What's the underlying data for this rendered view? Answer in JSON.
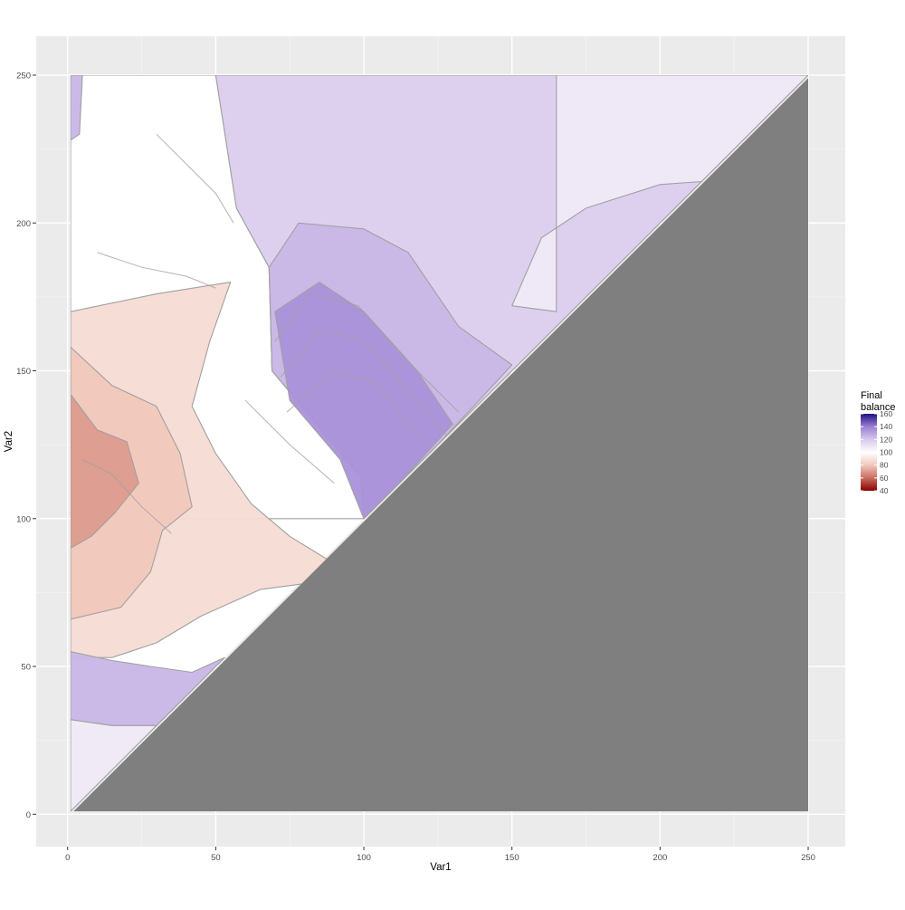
{
  "chart_data": {
    "type": "heatmap",
    "title": "",
    "xlabel": "Var1",
    "ylabel": "Var2",
    "xlim": [
      1,
      250
    ],
    "ylim": [
      1,
      250
    ],
    "x_ticks": [
      0,
      50,
      100,
      150,
      200,
      250
    ],
    "y_ticks": [
      0,
      50,
      100,
      150,
      200,
      250
    ],
    "grid": true,
    "legend": {
      "title_lines": [
        "Final",
        "balance"
      ],
      "placement": "right",
      "ticks": [
        160,
        140,
        120,
        100,
        80,
        60,
        40
      ],
      "range": [
        40,
        160
      ],
      "colors_low_to_high": [
        "#8b0000",
        "#c86e5f",
        "#f0c8bc",
        "#ffffff",
        "#d7c8ec",
        "#9b7fd4",
        "#1f1380"
      ]
    },
    "colors": {
      "panel_background": "#ebebeb",
      "grid_major": "#ffffff",
      "grid_minor": "#f3f3f3",
      "na_region": "#7f7f7f",
      "contour": "#a0a0a0"
    },
    "regions": [
      {
        "label": "white plateau (~100)",
        "value": 100,
        "polygon": [
          [
            1,
            250
          ],
          [
            50,
            250
          ],
          [
            57,
            205
          ],
          [
            68,
            185
          ],
          [
            69,
            150
          ],
          [
            99,
            114
          ],
          [
            100,
            100
          ],
          [
            1,
            100
          ]
        ]
      },
      {
        "label": "light red (~85-90)",
        "value": 87,
        "polygon": [
          [
            1,
            170
          ],
          [
            30,
            176
          ],
          [
            55,
            180
          ],
          [
            48,
            160
          ],
          [
            42,
            138
          ],
          [
            50,
            122
          ],
          [
            62,
            105
          ],
          [
            75,
            94
          ],
          [
            88,
            86
          ],
          [
            80,
            78
          ],
          [
            65,
            76
          ],
          [
            45,
            67
          ],
          [
            30,
            58
          ],
          [
            15,
            53
          ],
          [
            1,
            53
          ]
        ]
      },
      {
        "label": "medium red (~80)",
        "value": 80,
        "polygon": [
          [
            1,
            158
          ],
          [
            15,
            145
          ],
          [
            30,
            138
          ],
          [
            38,
            122
          ],
          [
            42,
            104
          ],
          [
            32,
            96
          ],
          [
            28,
            82
          ],
          [
            18,
            70
          ],
          [
            1,
            66
          ]
        ]
      },
      {
        "label": "deep red (~70)",
        "value": 70,
        "polygon": [
          [
            1,
            142
          ],
          [
            10,
            130
          ],
          [
            20,
            126
          ],
          [
            24,
            112
          ],
          [
            16,
            102
          ],
          [
            8,
            94
          ],
          [
            1,
            90
          ]
        ]
      },
      {
        "label": "lavender (~115-120)",
        "value": 118,
        "polygon": [
          [
            50,
            250
          ],
          [
            250,
            250
          ],
          [
            142,
            142
          ],
          [
            100,
            100
          ],
          [
            99,
            114
          ],
          [
            69,
            150
          ],
          [
            68,
            185
          ],
          [
            57,
            205
          ]
        ]
      },
      {
        "label": "purple band (~125)",
        "value": 125,
        "polygon": [
          [
            68,
            185
          ],
          [
            78,
            200
          ],
          [
            100,
            198
          ],
          [
            115,
            190
          ],
          [
            132,
            165
          ],
          [
            150,
            152
          ],
          [
            125,
            125
          ],
          [
            100,
            100
          ],
          [
            99,
            114
          ],
          [
            69,
            150
          ]
        ]
      },
      {
        "label": "deep purple (~135)",
        "value": 135,
        "polygon": [
          [
            70,
            170
          ],
          [
            85,
            180
          ],
          [
            100,
            170
          ],
          [
            118,
            150
          ],
          [
            130,
            132
          ],
          [
            112,
            112
          ],
          [
            100,
            100
          ],
          [
            92,
            120
          ],
          [
            75,
            140
          ]
        ]
      },
      {
        "label": "upper pale band (~108)",
        "value": 108,
        "polygon": [
          [
            165,
            250
          ],
          [
            250,
            250
          ],
          [
            214,
            214
          ],
          [
            200,
            213
          ],
          [
            175,
            205
          ],
          [
            160,
            195
          ],
          [
            150,
            172
          ],
          [
            165,
            170
          ]
        ]
      },
      {
        "label": "lower purple strip (~125)",
        "value": 125,
        "polygon": [
          [
            1,
            55
          ],
          [
            15,
            52
          ],
          [
            28,
            50
          ],
          [
            42,
            48
          ],
          [
            53,
            53
          ],
          [
            48,
            48
          ],
          [
            40,
            40
          ],
          [
            30,
            30
          ],
          [
            15,
            30
          ],
          [
            1,
            32
          ]
        ]
      },
      {
        "label": "lower pale strip (~108)",
        "value": 108,
        "polygon": [
          [
            1,
            32
          ],
          [
            15,
            30
          ],
          [
            30,
            30
          ],
          [
            1,
            1
          ]
        ]
      },
      {
        "label": "left purple sliver (~125)",
        "value": 125,
        "polygon": [
          [
            1,
            250
          ],
          [
            5,
            250
          ],
          [
            4,
            230
          ],
          [
            1,
            228
          ]
        ]
      }
    ]
  }
}
